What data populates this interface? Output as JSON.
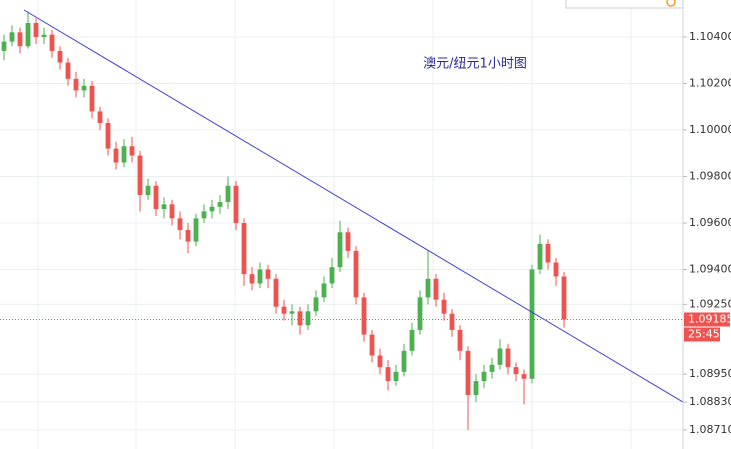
{
  "chart_data": {
    "type": "candlestick",
    "title": "澳元/纽元1小时图",
    "up_color": "#4caf50",
    "down_color": "#ef5350",
    "xlim": [
      -0.5,
      84.875
    ],
    "ylim": [
      1.08628,
      1.10559
    ],
    "grid": true,
    "yticks": [
      {
        "value": 1.104,
        "label": "1.10400"
      },
      {
        "value": 1.102,
        "label": "1.10200"
      },
      {
        "value": 1.1,
        "label": "1.10000"
      },
      {
        "value": 1.098,
        "label": "1.09800"
      },
      {
        "value": 1.096,
        "label": "1.09600"
      },
      {
        "value": 1.094,
        "label": "1.09400"
      },
      {
        "value": 1.0925,
        "label": "1.09250"
      },
      {
        "value": 1.0895,
        "label": "1.08950"
      },
      {
        "value": 1.0883,
        "label": "1.08830"
      },
      {
        "value": 1.0871,
        "label": "1.08710"
      }
    ],
    "open": [
      1.1034,
      1.1038,
      1.1042,
      1.1036,
      1.1046,
      1.104,
      1.1041,
      1.1034,
      1.1029,
      1.1022,
      1.1017,
      1.1019,
      1.1008,
      1.1003,
      1.0992,
      1.0986,
      1.0993,
      1.0989,
      1.0972,
      1.0976,
      1.0966,
      1.0968,
      1.0962,
      1.0957,
      1.0952,
      1.0962,
      1.0965,
      1.0967,
      1.0969,
      1.0976,
      1.096,
      1.0938,
      1.0934,
      1.094,
      1.0936,
      1.0924,
      1.0921,
      1.0922,
      1.0916,
      1.0922,
      1.0928,
      1.0934,
      1.0941,
      1.0956,
      1.0948,
      1.0928,
      1.0912,
      1.0903,
      1.0898,
      1.0892,
      1.0896,
      1.0905,
      1.0914,
      1.0928,
      1.0936,
      1.0927,
      1.0921,
      1.0914,
      1.0905,
      1.0886,
      1.0892,
      1.0896,
      1.0899,
      1.0906,
      1.0898,
      1.0895,
      1.0893,
      1.094,
      1.0951,
      1.0943,
      1.0937
    ],
    "high": [
      1.1041,
      1.1045,
      1.1044,
      1.1051,
      1.1048,
      1.1044,
      1.1043,
      1.1036,
      1.1031,
      1.1025,
      1.1022,
      1.1021,
      1.101,
      1.1005,
      1.0995,
      1.0996,
      1.0997,
      1.0991,
      1.0979,
      1.0978,
      1.0971,
      1.097,
      1.0965,
      1.096,
      1.0964,
      1.0968,
      1.097,
      1.0972,
      1.098,
      1.0978,
      1.0962,
      1.0941,
      1.0943,
      1.0942,
      1.0938,
      1.0927,
      1.0925,
      1.0924,
      1.0925,
      1.0931,
      1.0937,
      1.0945,
      1.0961,
      1.0958,
      1.095,
      1.093,
      1.0914,
      1.0906,
      1.0901,
      1.0899,
      1.0908,
      1.0917,
      1.0931,
      1.0948,
      1.0938,
      1.093,
      1.0923,
      1.0916,
      1.0907,
      1.0895,
      1.0899,
      1.0902,
      1.091,
      1.0908,
      1.09,
      1.0897,
      1.0942,
      1.0955,
      1.0953,
      1.0945,
      1.0939
    ],
    "low": [
      1.103,
      1.1036,
      1.1033,
      1.1035,
      1.1037,
      1.1037,
      1.1031,
      1.1026,
      1.1019,
      1.1014,
      1.1014,
      1.1005,
      1.1,
      1.0989,
      1.0983,
      1.0984,
      1.0986,
      1.0965,
      1.097,
      1.0963,
      1.0962,
      1.0959,
      1.0953,
      1.0947,
      1.095,
      1.096,
      1.0962,
      1.0964,
      1.0966,
      1.0957,
      1.0933,
      1.0931,
      1.0932,
      1.0932,
      1.0921,
      1.0918,
      1.0916,
      1.0912,
      1.0914,
      1.092,
      1.0926,
      1.0932,
      1.0939,
      1.0945,
      1.0925,
      1.0909,
      1.09,
      1.0895,
      1.0888,
      1.089,
      1.0894,
      1.0903,
      1.0912,
      1.0925,
      1.0924,
      1.0918,
      1.0911,
      1.0901,
      1.0871,
      1.0883,
      1.0889,
      1.0893,
      1.0897,
      1.0895,
      1.0892,
      1.0882,
      1.0891,
      1.0938,
      1.094,
      1.0933,
      1.0915
    ],
    "close": [
      1.1038,
      1.1042,
      1.1036,
      1.1046,
      1.104,
      1.1041,
      1.1034,
      1.1029,
      1.1022,
      1.1017,
      1.1019,
      1.1008,
      1.1003,
      1.0992,
      1.0986,
      1.0993,
      1.0989,
      1.0972,
      1.0976,
      1.0966,
      1.0968,
      1.0962,
      1.0957,
      1.0952,
      1.0962,
      1.0965,
      1.0967,
      1.0969,
      1.0976,
      1.096,
      1.0938,
      1.0934,
      1.094,
      1.0936,
      1.0924,
      1.0921,
      1.0922,
      1.0916,
      1.0922,
      1.0928,
      1.0934,
      1.0941,
      1.0956,
      1.0948,
      1.0928,
      1.0912,
      1.0903,
      1.0898,
      1.0892,
      1.0896,
      1.0905,
      1.0914,
      1.0928,
      1.0936,
      1.0927,
      1.0921,
      1.0914,
      1.0905,
      1.0886,
      1.0892,
      1.0896,
      1.0899,
      1.0906,
      1.0898,
      1.0895,
      1.0893,
      1.094,
      1.0951,
      1.0943,
      1.0937,
      1.09185
    ],
    "trendline": {
      "x": [
        2.5,
        84.875
      ],
      "y": [
        1.10516,
        1.0883
      ],
      "color": "#3f3fdc"
    },
    "last_price": {
      "value": 1.09185,
      "label": "1.09185"
    },
    "countdown": "25:45"
  }
}
